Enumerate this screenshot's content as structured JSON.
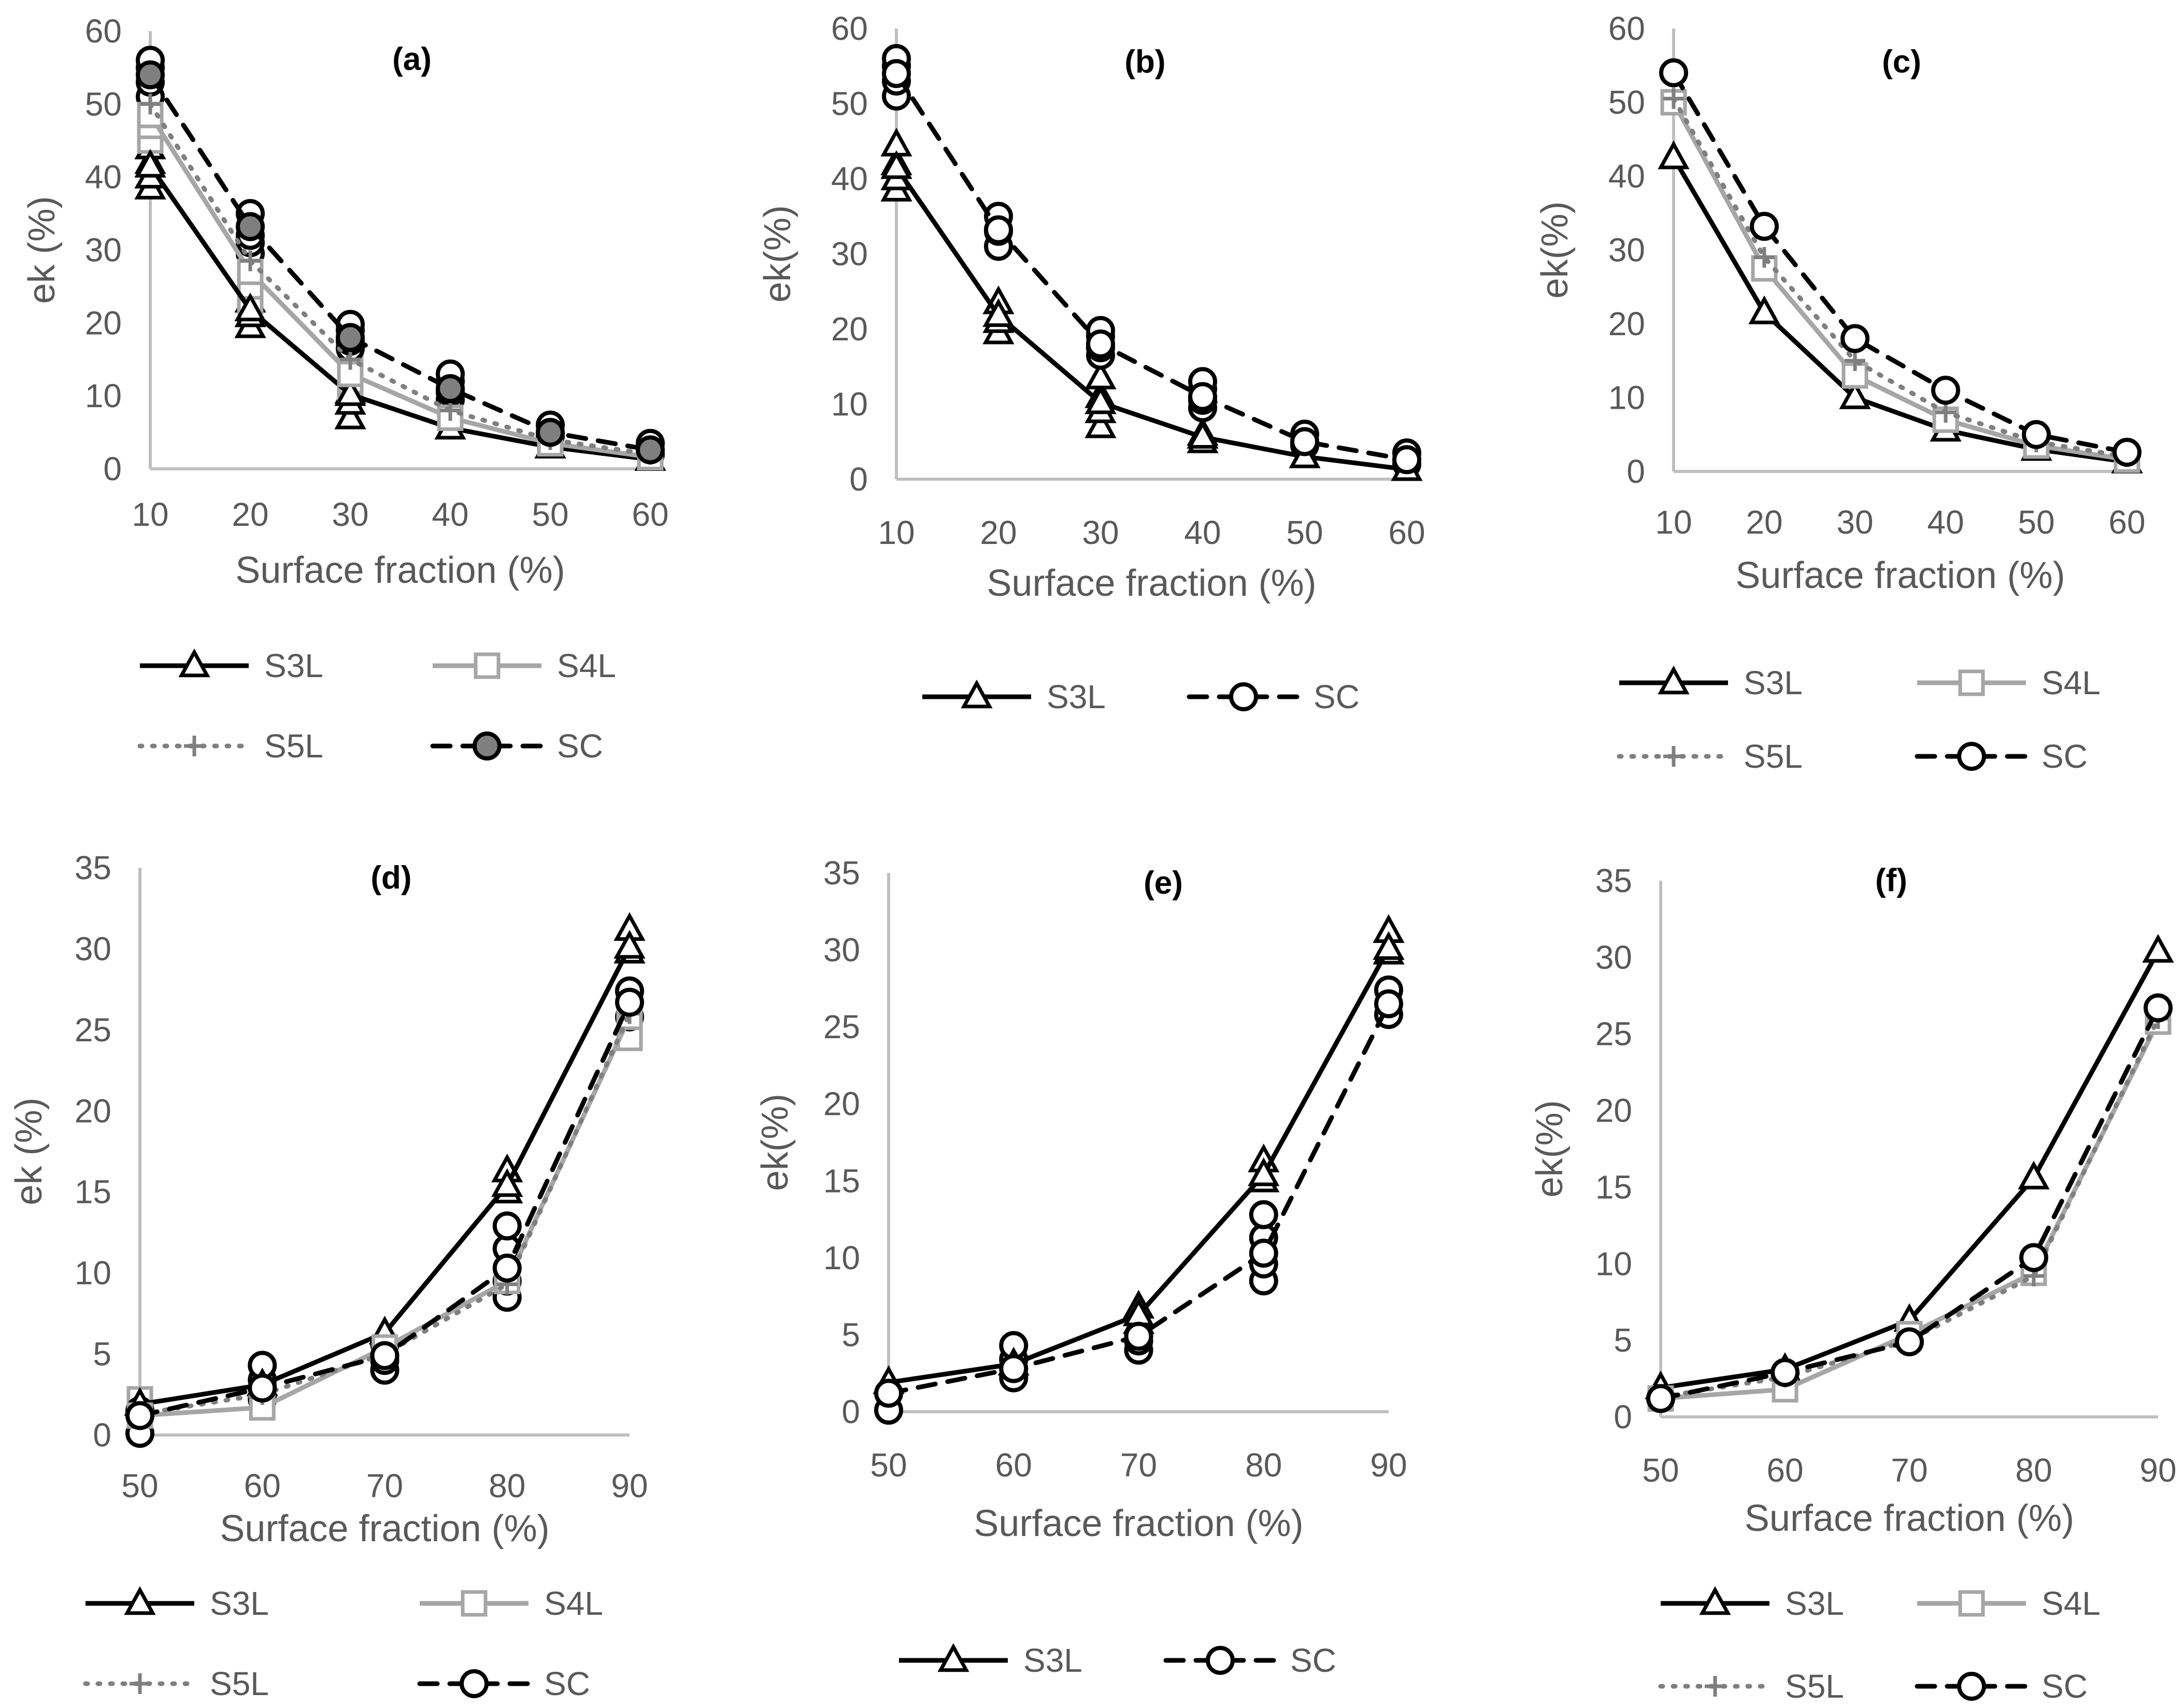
{
  "styles": {
    "S3L": {
      "color": "#000000",
      "dash": "none",
      "marker": "triangle",
      "width": 9
    },
    "S4L": {
      "color": "#a6a6a6",
      "dash": "none",
      "marker": "square",
      "width": 9
    },
    "S5L": {
      "color": "#7f7f7f",
      "dash": "4 20",
      "marker": "plus",
      "width": 9
    },
    "SC": {
      "color": "#000000",
      "dash": "34 24",
      "marker": "circle",
      "width": 9
    }
  },
  "chart_data": [
    {
      "type": "line",
      "title": "(a)",
      "xlabel": "Surface fraction (%)",
      "ylabel": "ek (%)",
      "x": [
        10,
        20,
        30,
        40,
        50,
        60
      ],
      "xlim": [
        10,
        60
      ],
      "ylim": [
        0,
        60
      ],
      "yticks": [
        0,
        10,
        20,
        30,
        40,
        50,
        60
      ],
      "series": [
        {
          "name": "S3L",
          "values": [
            41.5,
            21.8,
            10.2,
            5.6,
            3.0,
            1.3
          ]
        },
        {
          "name": "S4L",
          "values": [
            48.5,
            27.0,
            13.0,
            7.0,
            3.5,
            1.6
          ]
        },
        {
          "name": "S5L",
          "values": [
            50.0,
            28.5,
            15.0,
            8.0,
            4.0,
            2.0
          ]
        },
        {
          "name": "SC",
          "values": [
            54.0,
            33.2,
            18.0,
            11.0,
            5.0,
            2.6
          ]
        }
      ],
      "scatter": [
        {
          "series": "S3L",
          "x": 10,
          "values": [
            38.5,
            40.0,
            42.0,
            44.0
          ]
        },
        {
          "series": "S3L",
          "x": 20,
          "values": [
            19.5,
            21.0,
            23.0
          ]
        },
        {
          "series": "S3L",
          "x": 30,
          "values": [
            7.0,
            9.0,
            10.5
          ]
        },
        {
          "series": "S4L",
          "x": 10,
          "values": [
            45.0,
            47.0,
            50.0
          ]
        },
        {
          "series": "S4L",
          "x": 20,
          "values": [
            23.0,
            25.0,
            28.0,
            30.0
          ]
        },
        {
          "series": "S4L",
          "x": 30,
          "values": [
            11.0,
            12.0,
            14.0
          ]
        },
        {
          "series": "SC",
          "x": 10,
          "values": [
            51.0,
            53.0,
            55.0,
            56.0
          ]
        },
        {
          "series": "SC",
          "x": 20,
          "values": [
            29.5,
            31.0,
            32.0,
            35.0
          ]
        },
        {
          "series": "SC",
          "x": 30,
          "values": [
            16.5,
            17.5,
            19.0,
            19.8
          ]
        },
        {
          "series": "SC",
          "x": 40,
          "values": [
            9.5,
            10.5,
            12.0,
            13.0
          ]
        },
        {
          "series": "SC",
          "x": 50,
          "values": [
            4.5,
            6.0
          ]
        },
        {
          "series": "SC",
          "x": 60,
          "values": [
            2.0,
            3.5
          ]
        }
      ],
      "legend": [
        "S3L",
        "S4L",
        "S5L",
        "SC"
      ]
    },
    {
      "type": "line",
      "title": "(b)",
      "xlabel": "Surface fraction (%)",
      "ylabel": "ek(%)",
      "x": [
        10,
        20,
        30,
        40,
        50,
        60
      ],
      "xlim": [
        10,
        60
      ],
      "ylim": [
        0,
        60
      ],
      "yticks": [
        0,
        10,
        20,
        30,
        40,
        50,
        60
      ],
      "series": [
        {
          "name": "S3L",
          "values": [
            41.5,
            21.8,
            10.2,
            5.6,
            3.0,
            1.3
          ]
        },
        {
          "name": "SC",
          "values": [
            54.0,
            33.2,
            18.0,
            11.0,
            5.0,
            2.6
          ]
        }
      ],
      "scatter": [
        {
          "series": "S3L",
          "x": 10,
          "values": [
            38.5,
            40.0,
            42.0,
            44.5
          ]
        },
        {
          "series": "S3L",
          "x": 20,
          "values": [
            19.5,
            21.0,
            23.5
          ]
        },
        {
          "series": "S3L",
          "x": 30,
          "values": [
            7.0,
            9.0,
            11.0,
            13.5
          ]
        },
        {
          "series": "S3L",
          "x": 40,
          "values": [
            5.0,
            6.0
          ]
        },
        {
          "series": "SC",
          "x": 10,
          "values": [
            51.0,
            53.0,
            55.0,
            56.0
          ]
        },
        {
          "series": "SC",
          "x": 20,
          "values": [
            31.0,
            33.0,
            35.0
          ]
        },
        {
          "series": "SC",
          "x": 30,
          "values": [
            16.5,
            17.5,
            19.0,
            19.8
          ]
        },
        {
          "series": "SC",
          "x": 40,
          "values": [
            9.5,
            10.5,
            12.0,
            13.0
          ]
        },
        {
          "series": "SC",
          "x": 50,
          "values": [
            4.5,
            6.0
          ]
        },
        {
          "series": "SC",
          "x": 60,
          "values": [
            2.0,
            3.5
          ]
        }
      ],
      "legend": [
        "S3L",
        "SC"
      ]
    },
    {
      "type": "line",
      "title": "(c)",
      "xlabel": "Surface fraction (%)",
      "ylabel": "ek(%)",
      "x": [
        10,
        20,
        30,
        40,
        50,
        60
      ],
      "xlim": [
        10,
        60
      ],
      "ylim": [
        0,
        60
      ],
      "yticks": [
        0,
        10,
        20,
        30,
        40,
        50,
        60
      ],
      "series": [
        {
          "name": "S3L",
          "values": [
            42.5,
            21.5,
            10.0,
            5.6,
            3.0,
            1.3
          ]
        },
        {
          "name": "S4L",
          "values": [
            50.0,
            27.5,
            13.0,
            7.0,
            3.5,
            1.6
          ]
        },
        {
          "name": "S5L",
          "values": [
            50.5,
            29.0,
            15.0,
            8.0,
            4.0,
            2.0
          ]
        },
        {
          "name": "SC",
          "values": [
            54.0,
            33.2,
            18.0,
            11.0,
            5.0,
            2.6
          ]
        }
      ],
      "scatter": [],
      "legend": [
        "S3L",
        "S4L",
        "S5L",
        "SC"
      ]
    },
    {
      "type": "line",
      "title": "(d)",
      "xlabel": "Surface fraction (%)",
      "ylabel": "ek (%)",
      "x": [
        50,
        60,
        70,
        80,
        90
      ],
      "xlim": [
        50,
        90
      ],
      "ylim": [
        0,
        35
      ],
      "yticks": [
        0,
        5,
        10,
        15,
        20,
        25,
        30,
        35
      ],
      "series": [
        {
          "name": "S3L",
          "values": [
            1.9,
            3.1,
            6.3,
            15.4,
            30.1
          ]
        },
        {
          "name": "S4L",
          "values": [
            1.2,
            1.7,
            5.4,
            9.5,
            25.8
          ]
        },
        {
          "name": "S5L",
          "values": [
            1.3,
            2.5,
            5.0,
            9.3,
            26.0
          ]
        },
        {
          "name": "SC",
          "values": [
            1.2,
            2.9,
            4.9,
            10.3,
            26.7
          ]
        }
      ],
      "scatter": [
        {
          "series": "S3L",
          "x": 80,
          "values": [
            15.0,
            16.3
          ]
        },
        {
          "series": "S3L",
          "x": 90,
          "values": [
            29.8,
            31.2
          ]
        },
        {
          "series": "S4L",
          "x": 50,
          "values": [
            2.2
          ]
        },
        {
          "series": "S4L",
          "x": 90,
          "values": [
            24.5
          ]
        },
        {
          "series": "SC",
          "x": 50,
          "values": [
            0.1,
            1.5
          ]
        },
        {
          "series": "SC",
          "x": 60,
          "values": [
            2.2,
            3.4,
            4.3
          ]
        },
        {
          "series": "SC",
          "x": 70,
          "values": [
            4.0,
            4.6,
            5.6
          ]
        },
        {
          "series": "SC",
          "x": 80,
          "values": [
            8.5,
            9.5,
            11.5,
            12.9
          ]
        },
        {
          "series": "SC",
          "x": 90,
          "values": [
            25.8,
            27.4
          ]
        }
      ],
      "legend": [
        "S3L",
        "S4L",
        "S5L",
        "SC"
      ]
    },
    {
      "type": "line",
      "title": "(e)",
      "xlabel": "Surface fraction (%)",
      "ylabel": "ek(%)",
      "x": [
        50,
        60,
        70,
        80,
        90
      ],
      "xlim": [
        50,
        90
      ],
      "ylim": [
        0,
        35
      ],
      "yticks": [
        0,
        5,
        10,
        15,
        20,
        25,
        30,
        35
      ],
      "series": [
        {
          "name": "S3L",
          "values": [
            1.9,
            3.1,
            6.3,
            15.4,
            30.1
          ]
        },
        {
          "name": "SC",
          "values": [
            1.2,
            2.8,
            4.9,
            10.3,
            26.5
          ]
        }
      ],
      "scatter": [
        {
          "series": "S3L",
          "x": 70,
          "values": [
            5.8,
            6.8
          ]
        },
        {
          "series": "S3L",
          "x": 80,
          "values": [
            15.0,
            16.3
          ]
        },
        {
          "series": "S3L",
          "x": 90,
          "values": [
            29.8,
            31.2
          ]
        },
        {
          "series": "SC",
          "x": 50,
          "values": [
            0.1
          ]
        },
        {
          "series": "SC",
          "x": 60,
          "values": [
            2.2,
            3.4,
            4.3
          ]
        },
        {
          "series": "SC",
          "x": 70,
          "values": [
            4.0,
            4.6
          ]
        },
        {
          "series": "SC",
          "x": 80,
          "values": [
            8.5,
            9.6,
            11.3,
            12.8
          ]
        },
        {
          "series": "SC",
          "x": 90,
          "values": [
            25.8,
            27.4
          ]
        }
      ],
      "legend": [
        "S3L",
        "SC"
      ]
    },
    {
      "type": "line",
      "title": "(f)",
      "xlabel": "Surface fraction (%)",
      "ylabel": "ek(%)",
      "x": [
        50,
        60,
        70,
        80,
        90
      ],
      "xlim": [
        50,
        90
      ],
      "ylim": [
        0,
        35
      ],
      "yticks": [
        0,
        5,
        10,
        15,
        20,
        25,
        30,
        35
      ],
      "series": [
        {
          "name": "S3L",
          "values": [
            1.9,
            3.1,
            6.3,
            15.6,
            30.4
          ]
        },
        {
          "name": "S4L",
          "values": [
            1.2,
            1.8,
            5.4,
            9.4,
            25.8
          ]
        },
        {
          "name": "S5L",
          "values": [
            1.3,
            2.6,
            5.0,
            9.2,
            26.0
          ]
        },
        {
          "name": "SC",
          "values": [
            1.2,
            2.9,
            4.9,
            10.4,
            26.7
          ]
        }
      ],
      "scatter": [],
      "legend": [
        "S3L",
        "S4L",
        "S5L",
        "SC"
      ]
    }
  ]
}
